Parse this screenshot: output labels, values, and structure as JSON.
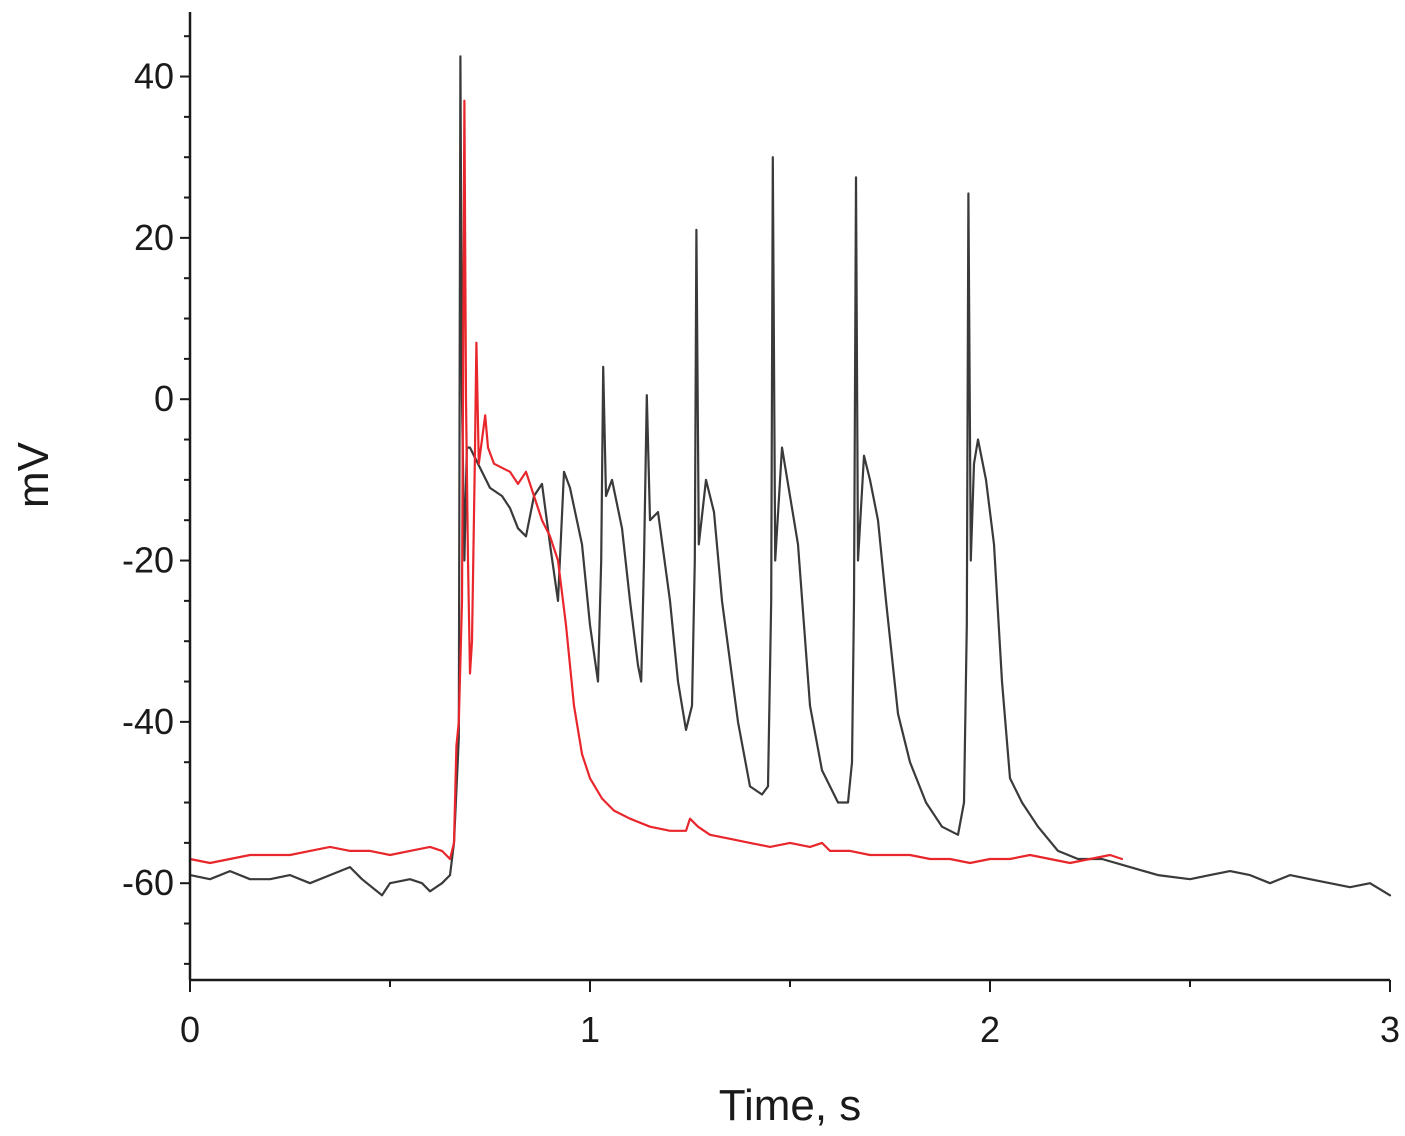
{
  "chart_data": {
    "type": "line",
    "title": "",
    "xlabel": "Time, s",
    "ylabel": "mV",
    "xlim": [
      0,
      3
    ],
    "ylim": [
      -72,
      48
    ],
    "x_ticks": [
      0,
      1,
      2,
      3
    ],
    "x_tick_labels": [
      "0",
      "1",
      "2",
      "3"
    ],
    "x_minor_ticks": [
      0.5,
      1.5,
      2.5
    ],
    "y_ticks": [
      -60,
      -40,
      -20,
      0,
      20,
      40
    ],
    "y_tick_labels": [
      "-60",
      "-40",
      "-20",
      "0",
      "20",
      "40"
    ],
    "y_minor_step": 5,
    "grid": false,
    "legend": "none",
    "series": [
      {
        "color": "#3a3a3a",
        "points": [
          [
            0.0,
            -59.0
          ],
          [
            0.05,
            -59.5
          ],
          [
            0.1,
            -58.5
          ],
          [
            0.15,
            -59.5
          ],
          [
            0.2,
            -59.5
          ],
          [
            0.25,
            -59.0
          ],
          [
            0.3,
            -60.0
          ],
          [
            0.35,
            -59.0
          ],
          [
            0.4,
            -58.0
          ],
          [
            0.43,
            -59.5
          ],
          [
            0.48,
            -61.5
          ],
          [
            0.5,
            -60.0
          ],
          [
            0.55,
            -59.5
          ],
          [
            0.58,
            -60.0
          ],
          [
            0.6,
            -61.0
          ],
          [
            0.63,
            -60.0
          ],
          [
            0.65,
            -59.0
          ],
          [
            0.66,
            -55.0
          ],
          [
            0.672,
            -42.0
          ],
          [
            0.676,
            42.5
          ],
          [
            0.68,
            0.0
          ],
          [
            0.686,
            -20.0
          ],
          [
            0.692,
            -6.0
          ],
          [
            0.7,
            -6.0
          ],
          [
            0.72,
            -8.0
          ],
          [
            0.75,
            -11.0
          ],
          [
            0.78,
            -12.0
          ],
          [
            0.8,
            -13.5
          ],
          [
            0.82,
            -16.0
          ],
          [
            0.84,
            -17.0
          ],
          [
            0.86,
            -12.0
          ],
          [
            0.88,
            -10.5
          ],
          [
            0.9,
            -18.0
          ],
          [
            0.92,
            -25.0
          ],
          [
            0.935,
            -9.0
          ],
          [
            0.95,
            -11.0
          ],
          [
            0.98,
            -18.0
          ],
          [
            1.0,
            -28.0
          ],
          [
            1.02,
            -35.0
          ],
          [
            1.028,
            -20.0
          ],
          [
            1.033,
            4.0
          ],
          [
            1.04,
            -12.0
          ],
          [
            1.055,
            -10.0
          ],
          [
            1.08,
            -16.0
          ],
          [
            1.1,
            -25.0
          ],
          [
            1.12,
            -33.0
          ],
          [
            1.128,
            -35.0
          ],
          [
            1.135,
            -20.0
          ],
          [
            1.142,
            0.5
          ],
          [
            1.15,
            -15.0
          ],
          [
            1.17,
            -14.0
          ],
          [
            1.2,
            -25.0
          ],
          [
            1.22,
            -35.0
          ],
          [
            1.24,
            -41.0
          ],
          [
            1.255,
            -38.0
          ],
          [
            1.262,
            -20.0
          ],
          [
            1.266,
            21.0
          ],
          [
            1.272,
            -18.0
          ],
          [
            1.29,
            -10.0
          ],
          [
            1.31,
            -14.0
          ],
          [
            1.33,
            -25.0
          ],
          [
            1.37,
            -40.0
          ],
          [
            1.4,
            -48.0
          ],
          [
            1.43,
            -49.0
          ],
          [
            1.445,
            -48.0
          ],
          [
            1.453,
            -25.0
          ],
          [
            1.457,
            30.0
          ],
          [
            1.463,
            -20.0
          ],
          [
            1.48,
            -6.0
          ],
          [
            1.5,
            -12.0
          ],
          [
            1.52,
            -18.0
          ],
          [
            1.55,
            -38.0
          ],
          [
            1.58,
            -46.0
          ],
          [
            1.62,
            -50.0
          ],
          [
            1.645,
            -50.0
          ],
          [
            1.655,
            -45.0
          ],
          [
            1.66,
            -25.0
          ],
          [
            1.665,
            27.5
          ],
          [
            1.67,
            -20.0
          ],
          [
            1.685,
            -7.0
          ],
          [
            1.7,
            -10.0
          ],
          [
            1.72,
            -15.0
          ],
          [
            1.74,
            -25.0
          ],
          [
            1.77,
            -39.0
          ],
          [
            1.8,
            -45.0
          ],
          [
            1.84,
            -50.0
          ],
          [
            1.88,
            -53.0
          ],
          [
            1.92,
            -54.0
          ],
          [
            1.935,
            -50.0
          ],
          [
            1.942,
            -28.0
          ],
          [
            1.946,
            25.5
          ],
          [
            1.952,
            -20.0
          ],
          [
            1.96,
            -8.0
          ],
          [
            1.97,
            -5.0
          ],
          [
            1.99,
            -10.0
          ],
          [
            2.01,
            -18.0
          ],
          [
            2.03,
            -35.0
          ],
          [
            2.05,
            -47.0
          ],
          [
            2.08,
            -50.0
          ],
          [
            2.12,
            -53.0
          ],
          [
            2.17,
            -56.0
          ],
          [
            2.22,
            -57.0
          ],
          [
            2.28,
            -57.0
          ],
          [
            2.35,
            -58.0
          ],
          [
            2.42,
            -59.0
          ],
          [
            2.5,
            -59.5
          ],
          [
            2.55,
            -59.0
          ],
          [
            2.6,
            -58.5
          ],
          [
            2.65,
            -59.0
          ],
          [
            2.7,
            -60.0
          ],
          [
            2.75,
            -59.0
          ],
          [
            2.8,
            -59.5
          ],
          [
            2.85,
            -60.0
          ],
          [
            2.9,
            -60.5
          ],
          [
            2.95,
            -60.0
          ],
          [
            3.0,
            -61.5
          ]
        ]
      },
      {
        "color": "#e8262b",
        "points": [
          [
            0.0,
            -57.0
          ],
          [
            0.05,
            -57.5
          ],
          [
            0.1,
            -57.0
          ],
          [
            0.15,
            -56.5
          ],
          [
            0.2,
            -56.5
          ],
          [
            0.25,
            -56.5
          ],
          [
            0.3,
            -56.0
          ],
          [
            0.35,
            -55.5
          ],
          [
            0.4,
            -56.0
          ],
          [
            0.45,
            -56.0
          ],
          [
            0.5,
            -56.5
          ],
          [
            0.55,
            -56.0
          ],
          [
            0.6,
            -55.5
          ],
          [
            0.63,
            -56.0
          ],
          [
            0.65,
            -57.0
          ],
          [
            0.66,
            -55.0
          ],
          [
            0.666,
            -43.0
          ],
          [
            0.672,
            -40.0
          ],
          [
            0.68,
            -25.0
          ],
          [
            0.686,
            37.0
          ],
          [
            0.69,
            0.0
          ],
          [
            0.695,
            -20.0
          ],
          [
            0.7,
            -34.0
          ],
          [
            0.705,
            -30.0
          ],
          [
            0.712,
            -8.0
          ],
          [
            0.716,
            7.0
          ],
          [
            0.722,
            -8.0
          ],
          [
            0.73,
            -5.0
          ],
          [
            0.738,
            -2.0
          ],
          [
            0.745,
            -6.0
          ],
          [
            0.76,
            -8.0
          ],
          [
            0.78,
            -8.5
          ],
          [
            0.8,
            -9.0
          ],
          [
            0.82,
            -10.5
          ],
          [
            0.84,
            -9.0
          ],
          [
            0.86,
            -12.0
          ],
          [
            0.88,
            -15.0
          ],
          [
            0.9,
            -17.0
          ],
          [
            0.92,
            -20.0
          ],
          [
            0.94,
            -28.0
          ],
          [
            0.96,
            -38.0
          ],
          [
            0.98,
            -44.0
          ],
          [
            1.0,
            -47.0
          ],
          [
            1.03,
            -49.5
          ],
          [
            1.06,
            -51.0
          ],
          [
            1.1,
            -52.0
          ],
          [
            1.15,
            -53.0
          ],
          [
            1.2,
            -53.5
          ],
          [
            1.24,
            -53.5
          ],
          [
            1.25,
            -52.0
          ],
          [
            1.27,
            -53.0
          ],
          [
            1.3,
            -54.0
          ],
          [
            1.35,
            -54.5
          ],
          [
            1.4,
            -55.0
          ],
          [
            1.45,
            -55.5
          ],
          [
            1.5,
            -55.0
          ],
          [
            1.55,
            -55.5
          ],
          [
            1.58,
            -55.0
          ],
          [
            1.6,
            -56.0
          ],
          [
            1.65,
            -56.0
          ],
          [
            1.7,
            -56.5
          ],
          [
            1.75,
            -56.5
          ],
          [
            1.8,
            -56.5
          ],
          [
            1.85,
            -57.0
          ],
          [
            1.9,
            -57.0
          ],
          [
            1.95,
            -57.5
          ],
          [
            2.0,
            -57.0
          ],
          [
            2.05,
            -57.0
          ],
          [
            2.1,
            -56.5
          ],
          [
            2.15,
            -57.0
          ],
          [
            2.2,
            -57.5
          ],
          [
            2.25,
            -57.0
          ],
          [
            2.3,
            -56.5
          ],
          [
            2.33,
            -57.0
          ]
        ]
      }
    ]
  }
}
